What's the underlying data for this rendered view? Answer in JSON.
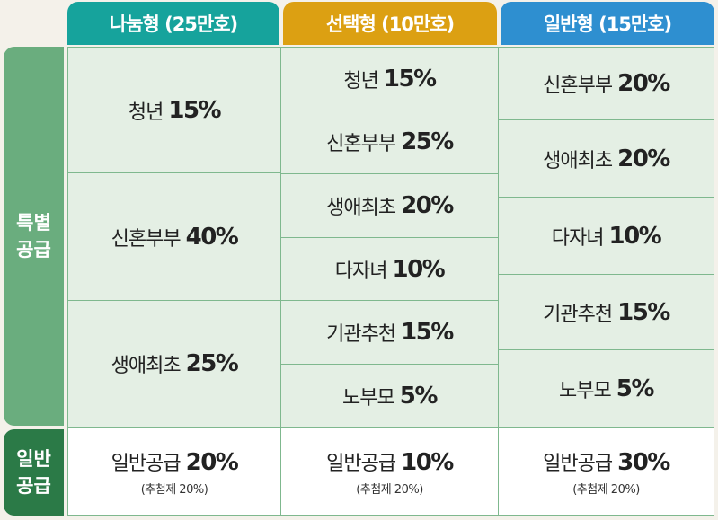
{
  "headers": [
    {
      "label": "나눔형 (25만호)",
      "color": "#16a39c"
    },
    {
      "label": "선택형 (10만호)",
      "color": "#dca012"
    },
    {
      "label": "일반형 (15만호)",
      "color": "#2e8fd0"
    }
  ],
  "side": {
    "special_line1": "특별",
    "special_line2": "공급",
    "general_line1": "일반",
    "general_line2": "공급",
    "special_color": "#6aad7e",
    "general_color": "#2b7a47"
  },
  "col1": [
    {
      "label": "청년",
      "value": "15%"
    },
    {
      "label": "신혼부부",
      "value": "40%"
    },
    {
      "label": "생애최초",
      "value": "25%"
    }
  ],
  "col2": [
    {
      "label": "청년",
      "value": "15%"
    },
    {
      "label": "신혼부부",
      "value": "25%"
    },
    {
      "label": "생애최초",
      "value": "20%"
    },
    {
      "label": "다자녀",
      "value": "10%"
    },
    {
      "label": "기관추천",
      "value": "15%"
    },
    {
      "label": "노부모",
      "value": "5%"
    }
  ],
  "col3": [
    {
      "label": "신혼부부",
      "value": "20%"
    },
    {
      "label": "생애최초",
      "value": "20%"
    },
    {
      "label": "다자녀",
      "value": "10%"
    },
    {
      "label": "기관추천",
      "value": "15%"
    },
    {
      "label": "노부모",
      "value": "5%"
    }
  ],
  "general": [
    {
      "label": "일반공급",
      "value": "20%",
      "note": "(추첨제 20%)"
    },
    {
      "label": "일반공급",
      "value": "10%",
      "note": "(추첨제 20%)"
    },
    {
      "label": "일반공급",
      "value": "30%",
      "note": "(추첨제 20%)"
    }
  ]
}
